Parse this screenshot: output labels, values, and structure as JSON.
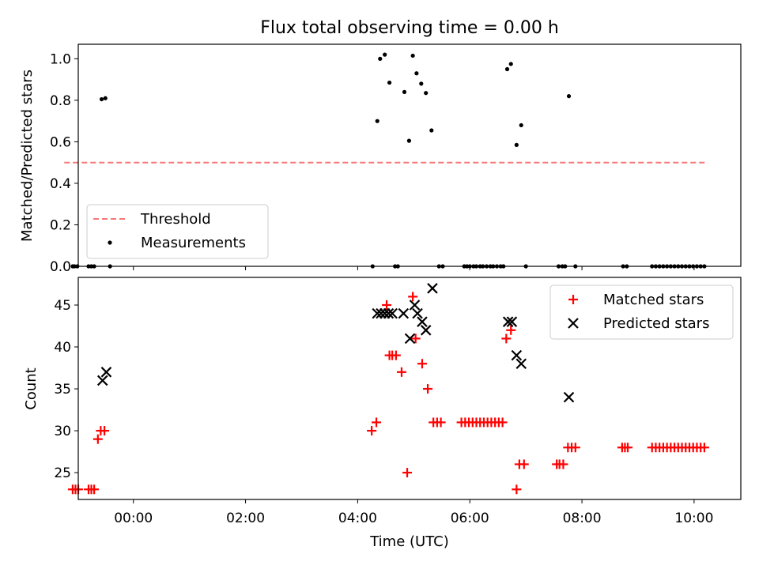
{
  "chart_data": [
    {
      "type": "scatter",
      "title": "Flux total observing time = 0.00 h",
      "xlabel": "",
      "ylabel": "Matched/Predicted stars",
      "xlim": [
        "23:01",
        "10:50"
      ],
      "ylim": [
        0,
        1.07
      ],
      "yticks": [
        "0.0",
        "0.2",
        "0.4",
        "0.6",
        "0.8",
        "1.0"
      ],
      "grid": false,
      "legend_position": "lower-left",
      "threshold": {
        "name": "Threshold",
        "value": 0.5,
        "x_start": "22:46",
        "x_end": "10:13",
        "color": "#f77777"
      },
      "series": [
        {
          "name": "Measurements",
          "color": "#000000",
          "points": [
            [
              "22:55",
              0
            ],
            [
              "22:57",
              0
            ],
            [
              "23:00",
              0
            ],
            [
              "23:12",
              0
            ],
            [
              "23:15",
              0
            ],
            [
              "23:18",
              0
            ],
            [
              "23:26",
              0.805
            ],
            [
              "23:30",
              0.81
            ],
            [
              "23:35",
              0
            ],
            [
              "04:16",
              0
            ],
            [
              "04:21",
              0.7
            ],
            [
              "04:24",
              1.0
            ],
            [
              "04:29",
              1.02
            ],
            [
              "04:34",
              0.885
            ],
            [
              "04:40",
              0
            ],
            [
              "04:43",
              0
            ],
            [
              "04:50",
              0.84
            ],
            [
              "04:55",
              0.605
            ],
            [
              "04:59",
              1.015
            ],
            [
              "05:03",
              0.93
            ],
            [
              "05:08",
              0.88
            ],
            [
              "05:13",
              0.835
            ],
            [
              "05:19",
              0.655
            ],
            [
              "05:27",
              0
            ],
            [
              "05:31",
              0
            ],
            [
              "05:54",
              0
            ],
            [
              "05:57",
              0
            ],
            [
              "06:00",
              0
            ],
            [
              "06:04",
              0
            ],
            [
              "06:07",
              0
            ],
            [
              "06:11",
              0
            ],
            [
              "06:14",
              0
            ],
            [
              "06:18",
              0
            ],
            [
              "06:22",
              0
            ],
            [
              "06:25",
              0
            ],
            [
              "06:29",
              0
            ],
            [
              "06:33",
              0
            ],
            [
              "06:36",
              0
            ],
            [
              "06:40",
              0.95
            ],
            [
              "06:44",
              0.975
            ],
            [
              "06:50",
              0.585
            ],
            [
              "06:55",
              0.68
            ],
            [
              "07:00",
              0
            ],
            [
              "07:35",
              0
            ],
            [
              "07:39",
              0
            ],
            [
              "07:42",
              0
            ],
            [
              "07:46",
              0.82
            ],
            [
              "07:53",
              0
            ],
            [
              "08:44",
              0
            ],
            [
              "08:48",
              0
            ],
            [
              "09:15",
              0
            ],
            [
              "09:19",
              0
            ],
            [
              "09:23",
              0
            ],
            [
              "09:27",
              0
            ],
            [
              "09:31",
              0
            ],
            [
              "09:35",
              0
            ],
            [
              "09:39",
              0
            ],
            [
              "09:43",
              0
            ],
            [
              "09:47",
              0
            ],
            [
              "09:51",
              0
            ],
            [
              "09:55",
              0
            ],
            [
              "09:59",
              0
            ],
            [
              "10:03",
              0
            ],
            [
              "10:07",
              0
            ],
            [
              "10:11",
              0
            ]
          ]
        }
      ]
    },
    {
      "type": "scatter",
      "title": "",
      "xlabel": "Time (UTC)",
      "ylabel": "Count",
      "xlim": [
        "23:01",
        "10:50"
      ],
      "ylim": [
        21.8,
        48.3
      ],
      "xticks": [
        "00:00",
        "02:00",
        "04:00",
        "06:00",
        "08:00",
        "10:00"
      ],
      "yticks": [
        "25",
        "30",
        "35",
        "40",
        "45"
      ],
      "grid": false,
      "legend_position": "upper-right",
      "series": [
        {
          "name": "Matched stars",
          "color": "#ff0000",
          "marker": "plus",
          "points": [
            [
              "22:55",
              23
            ],
            [
              "22:58",
              23
            ],
            [
              "23:01",
              23
            ],
            [
              "23:12",
              23
            ],
            [
              "23:15",
              23
            ],
            [
              "23:18",
              23
            ],
            [
              "23:22",
              29
            ],
            [
              "23:25",
              30
            ],
            [
              "23:29",
              30
            ],
            [
              "04:15",
              30
            ],
            [
              "04:20",
              31
            ],
            [
              "04:31",
              45
            ],
            [
              "04:34",
              39
            ],
            [
              "04:37",
              39
            ],
            [
              "04:41",
              39
            ],
            [
              "04:47",
              37
            ],
            [
              "04:53",
              25
            ],
            [
              "04:59",
              46
            ],
            [
              "05:02",
              41
            ],
            [
              "05:09",
              38
            ],
            [
              "05:15",
              35
            ],
            [
              "05:21",
              31
            ],
            [
              "05:25",
              31
            ],
            [
              "05:29",
              31
            ],
            [
              "05:51",
              31
            ],
            [
              "05:55",
              31
            ],
            [
              "05:59",
              31
            ],
            [
              "06:03",
              31
            ],
            [
              "06:07",
              31
            ],
            [
              "06:11",
              31
            ],
            [
              "06:15",
              31
            ],
            [
              "06:19",
              31
            ],
            [
              "06:23",
              31
            ],
            [
              "06:27",
              31
            ],
            [
              "06:31",
              31
            ],
            [
              "06:35",
              31
            ],
            [
              "06:39",
              41
            ],
            [
              "06:44",
              42
            ],
            [
              "06:50",
              23
            ],
            [
              "06:53",
              26
            ],
            [
              "06:58",
              26
            ],
            [
              "07:33",
              26
            ],
            [
              "07:36",
              26
            ],
            [
              "07:40",
              26
            ],
            [
              "07:45",
              28
            ],
            [
              "07:49",
              28
            ],
            [
              "07:53",
              28
            ],
            [
              "08:43",
              28
            ],
            [
              "08:46",
              28
            ],
            [
              "08:49",
              28
            ],
            [
              "09:15",
              28
            ],
            [
              "09:19",
              28
            ],
            [
              "09:23",
              28
            ],
            [
              "09:27",
              28
            ],
            [
              "09:31",
              28
            ],
            [
              "09:35",
              28
            ],
            [
              "09:39",
              28
            ],
            [
              "09:43",
              28
            ],
            [
              "09:47",
              28
            ],
            [
              "09:51",
              28
            ],
            [
              "09:55",
              28
            ],
            [
              "09:59",
              28
            ],
            [
              "10:03",
              28
            ],
            [
              "10:07",
              28
            ],
            [
              "10:11",
              28
            ]
          ]
        },
        {
          "name": "Predicted stars",
          "color": "#000000",
          "marker": "x",
          "points": [
            [
              "23:27",
              36
            ],
            [
              "23:31",
              37
            ],
            [
              "04:21",
              44
            ],
            [
              "04:25",
              44
            ],
            [
              "04:29",
              44
            ],
            [
              "04:33",
              44
            ],
            [
              "04:37",
              44
            ],
            [
              "04:49",
              44
            ],
            [
              "04:56",
              41
            ],
            [
              "05:01",
              45
            ],
            [
              "05:04",
              44
            ],
            [
              "05:09",
              43
            ],
            [
              "05:13",
              42
            ],
            [
              "05:20",
              47
            ],
            [
              "06:41",
              43
            ],
            [
              "06:45",
              43
            ],
            [
              "06:50",
              39
            ],
            [
              "06:55",
              38
            ],
            [
              "07:46",
              34
            ]
          ]
        }
      ]
    }
  ]
}
